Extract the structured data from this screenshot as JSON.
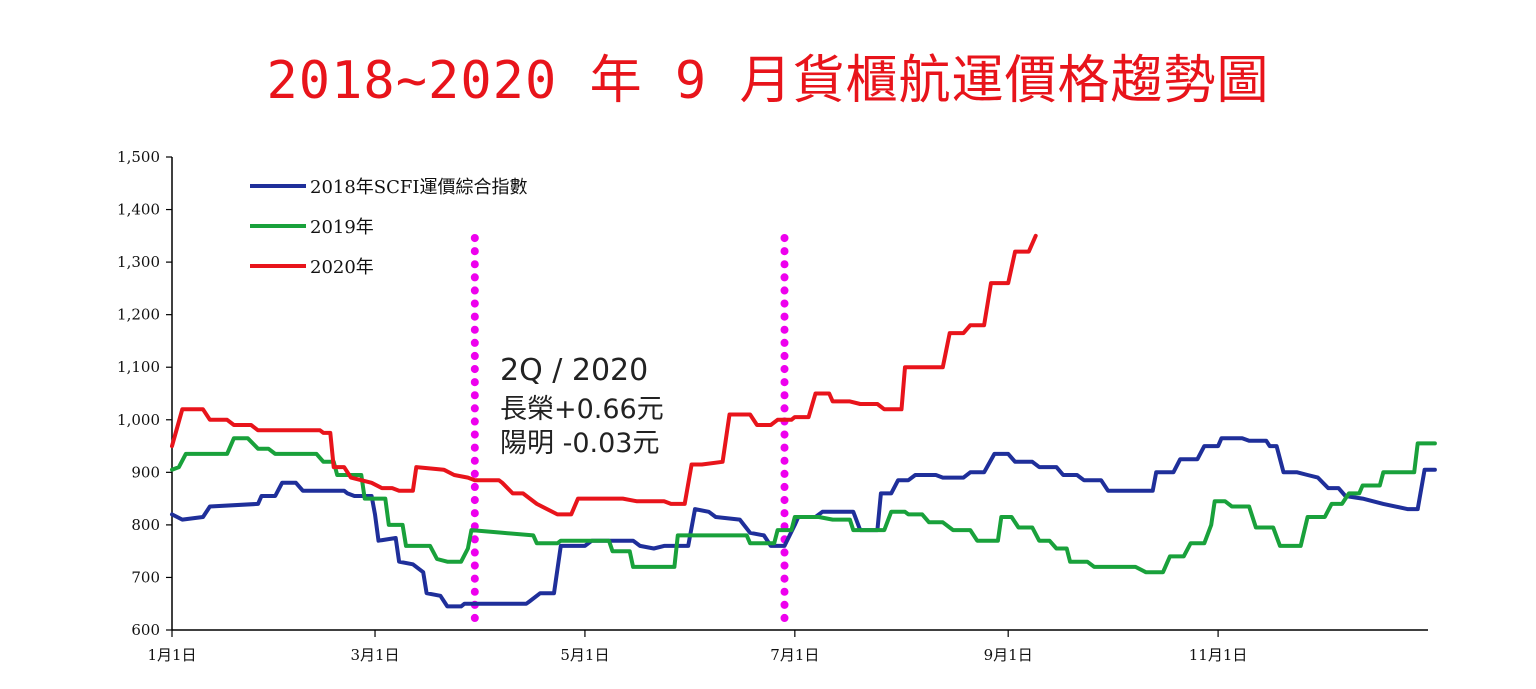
{
  "chart_data": {
    "type": "line",
    "title": "2018~2020 年 9 月貨櫃航運價格趨勢圖",
    "xlabel": "",
    "ylabel": "",
    "x_ticks": [
      {
        "label": "1月1日",
        "day": 0
      },
      {
        "label": "3月1日",
        "day": 59
      },
      {
        "label": "5月1日",
        "day": 120
      },
      {
        "label": "7月1日",
        "day": 181
      },
      {
        "label": "9月1日",
        "day": 243
      },
      {
        "label": "11月1日",
        "day": 304
      }
    ],
    "x_range_days": [
      0,
      365
    ],
    "ylim": [
      600,
      1500
    ],
    "y_ticks": [
      {
        "label": "600",
        "value": 600
      },
      {
        "label": "700",
        "value": 700
      },
      {
        "label": "800",
        "value": 800
      },
      {
        "label": "900",
        "value": 900
      },
      {
        "label": "1,000",
        "value": 1000
      },
      {
        "label": "1,100",
        "value": 1100
      },
      {
        "label": "1,200",
        "value": 1200
      },
      {
        "label": "1,300",
        "value": 1300
      },
      {
        "label": "1,400",
        "value": 1400
      },
      {
        "label": "1,500",
        "value": 1500
      }
    ],
    "legend_position": "top-left",
    "series": [
      {
        "name": "2018年SCFI運價綜合指數",
        "color": "#1f2f9a",
        "points": [
          [
            0,
            820
          ],
          [
            3,
            810
          ],
          [
            9,
            815
          ],
          [
            11,
            835
          ],
          [
            25,
            840
          ],
          [
            26,
            855
          ],
          [
            30,
            855
          ],
          [
            32,
            880
          ],
          [
            36,
            880
          ],
          [
            38,
            865
          ],
          [
            50,
            865
          ],
          [
            51,
            860
          ],
          [
            53,
            855
          ],
          [
            58,
            855
          ],
          [
            59,
            820
          ],
          [
            60,
            770
          ],
          [
            65,
            775
          ],
          [
            66,
            730
          ],
          [
            70,
            725
          ],
          [
            73,
            710
          ],
          [
            74,
            670
          ],
          [
            78,
            665
          ],
          [
            80,
            645
          ],
          [
            84,
            645
          ],
          [
            85,
            650
          ],
          [
            88,
            650
          ],
          [
            89,
            650
          ],
          [
            103,
            650
          ],
          [
            104,
            655
          ],
          [
            107,
            670
          ],
          [
            111,
            670
          ],
          [
            113,
            760
          ],
          [
            120,
            760
          ],
          [
            122,
            770
          ],
          [
            134,
            770
          ],
          [
            136,
            760
          ],
          [
            140,
            755
          ],
          [
            143,
            760
          ],
          [
            150,
            760
          ],
          [
            152,
            830
          ],
          [
            156,
            825
          ],
          [
            158,
            815
          ],
          [
            165,
            810
          ],
          [
            168,
            785
          ],
          [
            172,
            780
          ],
          [
            174,
            760
          ],
          [
            178,
            760
          ],
          [
            181,
            800
          ],
          [
            182,
            815
          ],
          [
            187,
            815
          ],
          [
            189,
            825
          ],
          [
            198,
            825
          ],
          [
            200,
            790
          ],
          [
            205,
            790
          ],
          [
            206,
            860
          ],
          [
            209,
            860
          ],
          [
            211,
            885
          ],
          [
            214,
            885
          ],
          [
            216,
            895
          ],
          [
            222,
            895
          ],
          [
            224,
            890
          ],
          [
            230,
            890
          ],
          [
            232,
            900
          ],
          [
            236,
            900
          ],
          [
            239,
            935
          ],
          [
            243,
            935
          ],
          [
            245,
            920
          ],
          [
            250,
            920
          ],
          [
            252,
            910
          ],
          [
            257,
            910
          ],
          [
            259,
            895
          ],
          [
            263,
            895
          ],
          [
            265,
            885
          ],
          [
            270,
            885
          ],
          [
            272,
            865
          ],
          [
            285,
            865
          ],
          [
            286,
            900
          ],
          [
            291,
            900
          ],
          [
            293,
            925
          ],
          [
            298,
            925
          ],
          [
            300,
            950
          ],
          [
            304,
            950
          ],
          [
            305,
            965
          ],
          [
            311,
            965
          ],
          [
            313,
            960
          ],
          [
            318,
            960
          ],
          [
            319,
            950
          ],
          [
            321,
            950
          ],
          [
            323,
            900
          ],
          [
            327,
            900
          ],
          [
            330,
            895
          ],
          [
            333,
            890
          ],
          [
            336,
            870
          ],
          [
            339,
            870
          ],
          [
            341,
            855
          ],
          [
            346,
            850
          ],
          [
            352,
            840
          ],
          [
            359,
            830
          ],
          [
            362,
            830
          ],
          [
            364,
            905
          ],
          [
            367,
            905
          ]
        ]
      },
      {
        "name": "2019年",
        "color": "#19a13b",
        "points": [
          [
            0,
            905
          ],
          [
            2,
            910
          ],
          [
            4,
            935
          ],
          [
            16,
            935
          ],
          [
            18,
            965
          ],
          [
            22,
            965
          ],
          [
            25,
            945
          ],
          [
            28,
            945
          ],
          [
            30,
            935
          ],
          [
            42,
            935
          ],
          [
            44,
            920
          ],
          [
            47,
            920
          ],
          [
            48,
            895
          ],
          [
            55,
            895
          ],
          [
            56,
            850
          ],
          [
            62,
            850
          ],
          [
            63,
            800
          ],
          [
            67,
            800
          ],
          [
            68,
            760
          ],
          [
            75,
            760
          ],
          [
            77,
            735
          ],
          [
            80,
            730
          ],
          [
            84,
            730
          ],
          [
            86,
            755
          ],
          [
            87,
            790
          ],
          [
            96,
            785
          ],
          [
            105,
            780
          ],
          [
            106,
            765
          ],
          [
            112,
            765
          ],
          [
            113,
            770
          ],
          [
            127,
            770
          ],
          [
            128,
            750
          ],
          [
            133,
            750
          ],
          [
            134,
            720
          ],
          [
            146,
            720
          ],
          [
            147,
            780
          ],
          [
            167,
            780
          ],
          [
            168,
            765
          ],
          [
            175,
            765
          ],
          [
            176,
            790
          ],
          [
            180,
            790
          ],
          [
            181,
            815
          ],
          [
            185,
            815
          ],
          [
            188,
            815
          ],
          [
            192,
            810
          ],
          [
            197,
            810
          ],
          [
            198,
            790
          ],
          [
            205,
            790
          ],
          [
            207,
            790
          ],
          [
            209,
            825
          ],
          [
            213,
            825
          ],
          [
            214,
            820
          ],
          [
            218,
            820
          ],
          [
            220,
            805
          ],
          [
            224,
            805
          ],
          [
            227,
            790
          ],
          [
            232,
            790
          ],
          [
            234,
            770
          ],
          [
            240,
            770
          ],
          [
            241,
            815
          ],
          [
            244,
            815
          ],
          [
            246,
            795
          ],
          [
            250,
            795
          ],
          [
            252,
            770
          ],
          [
            255,
            770
          ],
          [
            257,
            755
          ],
          [
            260,
            755
          ],
          [
            261,
            730
          ],
          [
            266,
            730
          ],
          [
            268,
            720
          ],
          [
            280,
            720
          ],
          [
            283,
            710
          ],
          [
            288,
            710
          ],
          [
            290,
            740
          ],
          [
            294,
            740
          ],
          [
            296,
            765
          ],
          [
            300,
            765
          ],
          [
            302,
            800
          ],
          [
            303,
            845
          ],
          [
            306,
            845
          ],
          [
            308,
            835
          ],
          [
            313,
            835
          ],
          [
            315,
            795
          ],
          [
            318,
            795
          ],
          [
            320,
            795
          ],
          [
            322,
            760
          ],
          [
            328,
            760
          ],
          [
            330,
            815
          ],
          [
            335,
            815
          ],
          [
            337,
            840
          ],
          [
            340,
            840
          ],
          [
            342,
            860
          ],
          [
            345,
            860
          ],
          [
            346,
            875
          ],
          [
            351,
            875
          ],
          [
            352,
            900
          ],
          [
            361,
            900
          ],
          [
            362,
            955
          ],
          [
            367,
            955
          ]
        ]
      },
      {
        "name": "2020年",
        "color": "#e8141b",
        "points": [
          [
            0,
            950
          ],
          [
            3,
            1020
          ],
          [
            9,
            1020
          ],
          [
            11,
            1000
          ],
          [
            16,
            1000
          ],
          [
            18,
            990
          ],
          [
            23,
            990
          ],
          [
            25,
            980
          ],
          [
            43,
            980
          ],
          [
            44,
            975
          ],
          [
            46,
            975
          ],
          [
            47,
            910
          ],
          [
            50,
            910
          ],
          [
            52,
            890
          ],
          [
            55,
            885
          ],
          [
            58,
            880
          ],
          [
            61,
            870
          ],
          [
            64,
            870
          ],
          [
            66,
            865
          ],
          [
            70,
            865
          ],
          [
            71,
            910
          ],
          [
            79,
            905
          ],
          [
            82,
            895
          ],
          [
            86,
            890
          ],
          [
            88,
            885
          ],
          [
            91,
            885
          ],
          [
            95,
            885
          ],
          [
            96,
            880
          ],
          [
            99,
            860
          ],
          [
            102,
            860
          ],
          [
            106,
            840
          ],
          [
            112,
            820
          ],
          [
            116,
            820
          ],
          [
            118,
            850
          ],
          [
            126,
            850
          ],
          [
            131,
            850
          ],
          [
            135,
            845
          ],
          [
            140,
            845
          ],
          [
            143,
            845
          ],
          [
            145,
            840
          ],
          [
            149,
            840
          ],
          [
            151,
            915
          ],
          [
            154,
            915
          ],
          [
            160,
            920
          ],
          [
            162,
            1010
          ],
          [
            168,
            1010
          ],
          [
            170,
            990
          ],
          [
            174,
            990
          ],
          [
            176,
            1000
          ],
          [
            180,
            1000
          ],
          [
            181,
            1005
          ],
          [
            185,
            1005
          ],
          [
            187,
            1050
          ],
          [
            191,
            1050
          ],
          [
            192,
            1035
          ],
          [
            197,
            1035
          ],
          [
            200,
            1030
          ],
          [
            205,
            1030
          ],
          [
            207,
            1020
          ],
          [
            212,
            1020
          ],
          [
            213,
            1100
          ],
          [
            224,
            1100
          ],
          [
            226,
            1165
          ],
          [
            230,
            1165
          ],
          [
            232,
            1180
          ],
          [
            236,
            1180
          ],
          [
            238,
            1260
          ],
          [
            243,
            1260
          ],
          [
            245,
            1320
          ],
          [
            249,
            1320
          ],
          [
            251,
            1350
          ]
        ]
      }
    ],
    "quarter_markers": [
      {
        "day": 88,
        "color": "#ee00ee"
      },
      {
        "day": 178,
        "color": "#ee00ee"
      }
    ],
    "annotations": {
      "line1": "2Q / 2020",
      "line2": "長榮+0.66元",
      "line3": "陽明 -0.03元"
    }
  }
}
